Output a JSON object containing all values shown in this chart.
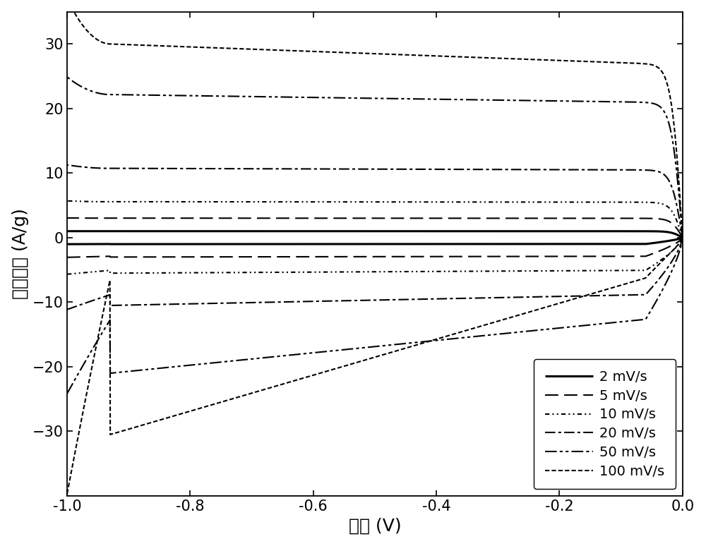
{
  "xlabel": "电位 (V)",
  "ylabel": "电流密度 (A/g)",
  "xlim": [
    -1.0,
    0.0
  ],
  "ylim": [
    -40,
    35
  ],
  "yticks": [
    -30,
    -20,
    -10,
    0,
    10,
    20,
    30
  ],
  "xticks": [
    -1.0,
    -0.8,
    -0.6,
    -0.4,
    -0.2,
    0.0
  ],
  "background_color": "#ffffff",
  "scan_rates": [
    2,
    5,
    10,
    20,
    50,
    100
  ],
  "amplitudes_top": [
    1.0,
    3.0,
    5.5,
    10.5,
    21.0,
    27.0
  ],
  "amplitudes_bot": [
    1.0,
    3.0,
    5.5,
    10.5,
    21.0,
    30.5
  ],
  "linewidths": [
    2.2,
    1.5,
    1.5,
    1.5,
    1.5,
    1.5
  ],
  "legend_labels": [
    "2 mV/s",
    "5 mV/s",
    "10 mV/s",
    "20 mV/s",
    "50 mV/s",
    "100 mV/s"
  ],
  "font_size": 18,
  "legend_font_size": 14,
  "tick_font_size": 15
}
